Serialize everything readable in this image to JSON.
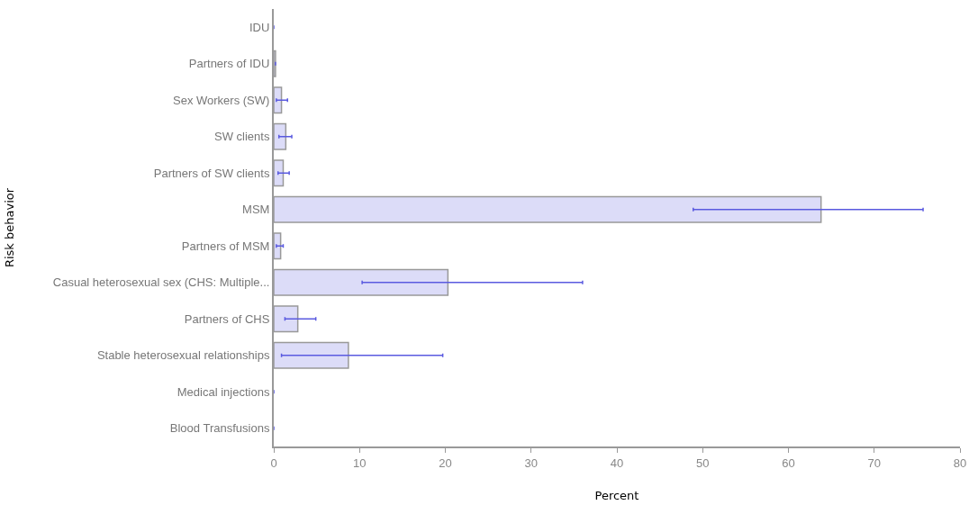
{
  "chart_data": {
    "type": "bar",
    "orientation": "horizontal",
    "xlabel": "Percent",
    "ylabel": "Risk behavior",
    "categories": [
      "IDU",
      "Partners of IDU",
      "Sex Workers (SW)",
      "SW clients",
      "Partners of SW clients",
      "MSM",
      "Partners of MSM",
      "Casual heterosexual sex (CHS: Multiple...",
      "Partners of CHS",
      "Stable heterosexual relationships",
      "Medical injections",
      "Blood Transfusions"
    ],
    "values": [
      0,
      0.2,
      0.9,
      1.4,
      1.1,
      63.8,
      0.8,
      20.3,
      2.8,
      8.7,
      0,
      0
    ],
    "errors": [
      null,
      null,
      [
        0.3,
        1.6
      ],
      [
        0.6,
        2.1
      ],
      [
        0.5,
        1.8
      ],
      [
        48.9,
        75.7
      ],
      [
        0.3,
        1.1
      ],
      [
        10.3,
        36.0
      ],
      [
        1.3,
        4.9
      ],
      [
        0.9,
        19.7
      ],
      null,
      null
    ],
    "color": "#dcdcf8",
    "xlim": [
      0,
      80
    ],
    "xticks": [
      0,
      10,
      20,
      30,
      40,
      50,
      60,
      70,
      80
    ],
    "grid": false,
    "legend": false
  }
}
